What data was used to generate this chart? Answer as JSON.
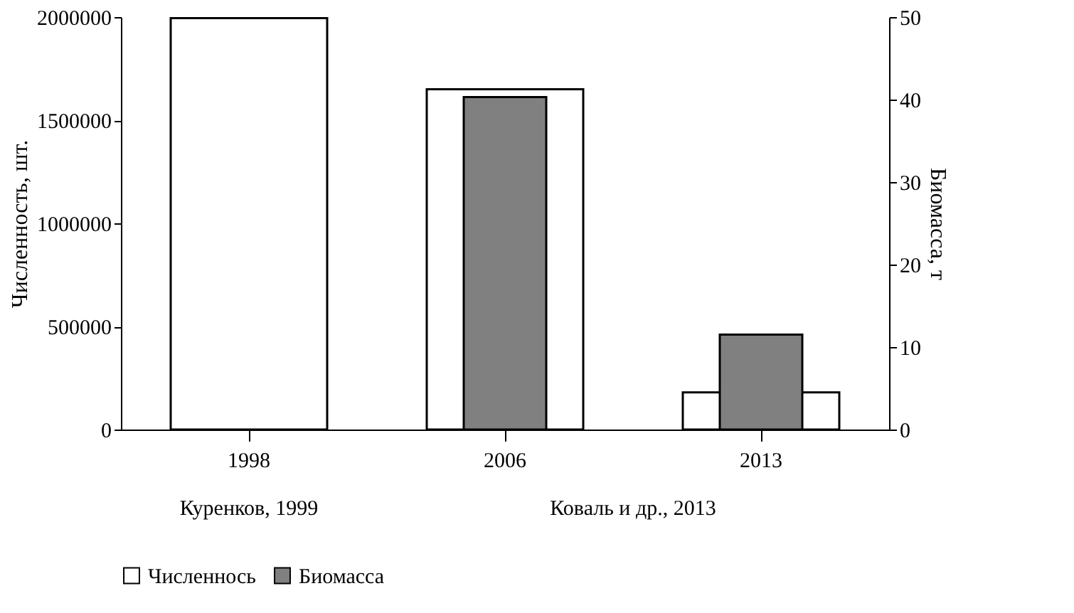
{
  "chart_data": {
    "type": "bar",
    "categories": [
      "1998",
      "2006",
      "2013"
    ],
    "ylabel": "Численность, шт.",
    "y2label": "Биомасса, т",
    "series": [
      {
        "name": "Численнось",
        "color": "#ffffff",
        "values": [
          1995000,
          1650000,
          180000
        ]
      },
      {
        "name": "Биомасса",
        "color": "#808080",
        "values": [
          null,
          40.3,
          11.5
        ],
        "axis": "y2"
      }
    ],
    "ylim": [
      0,
      2000000
    ],
    "yticks": [
      0,
      500000,
      1000000,
      1500000,
      2000000
    ],
    "y2lim": [
      0,
      50
    ],
    "y2ticks": [
      0,
      10,
      20,
      30,
      40,
      50
    ],
    "annotations": [
      "Куренков, 1999",
      "Коваль и др., 2013"
    ],
    "grid": false,
    "legend": "bottom"
  }
}
